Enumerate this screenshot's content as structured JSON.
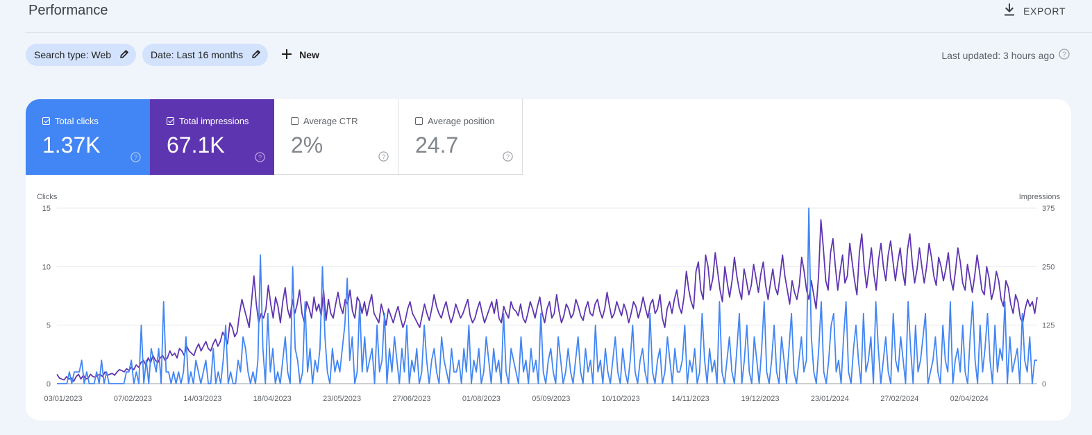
{
  "header": {
    "title": "Performance",
    "export_label": "EXPORT"
  },
  "filters": {
    "search_type": "Search type: Web",
    "date": "Date: Last 16 months",
    "new_label": "New",
    "last_updated": "Last updated: 3 hours ago"
  },
  "metrics": [
    {
      "label": "Total clicks",
      "value": "1.37K",
      "checked": true
    },
    {
      "label": "Total impressions",
      "value": "67.1K",
      "checked": true
    },
    {
      "label": "Average CTR",
      "value": "2%",
      "checked": false
    },
    {
      "label": "Average position",
      "value": "24.7",
      "checked": false
    }
  ],
  "colors": {
    "clicks": "#4285f4",
    "impressions": "#5e35b1"
  },
  "chart_data": {
    "type": "line",
    "left_axis_label": "Clicks",
    "right_axis_label": "Impressions",
    "left_ticks": [
      "15",
      "10",
      "5",
      "0"
    ],
    "right_ticks": [
      "375",
      "250",
      "125",
      "0"
    ],
    "ylim_left": [
      0,
      15
    ],
    "ylim_right": [
      0,
      375
    ],
    "x_ticks": [
      "03/01/2023",
      "07/02/2023",
      "14/03/2023",
      "18/04/2023",
      "23/05/2023",
      "27/06/2023",
      "01/08/2023",
      "05/09/2023",
      "10/10/2023",
      "14/11/2023",
      "19/12/2023",
      "23/01/2024",
      "27/02/2024",
      "02/04/2024"
    ],
    "x_range": [
      "03/01/2023",
      "01/05/2024"
    ],
    "grid": true,
    "series": [
      {
        "name": "Clicks",
        "axis": "left",
        "color": "#4285f4",
        "values": [
          0,
          0,
          0,
          0,
          0,
          1,
          0,
          1,
          1,
          1,
          2,
          0,
          1,
          0,
          0,
          0,
          1,
          0,
          2,
          0,
          1,
          0,
          0,
          0,
          0,
          0,
          0,
          0,
          1,
          1,
          2,
          0,
          1,
          0,
          5,
          0,
          2,
          0,
          3,
          2,
          1,
          3,
          0,
          7,
          1,
          1,
          0,
          1,
          0,
          1,
          0,
          1,
          4,
          0,
          1,
          0,
          2,
          1,
          0,
          1,
          2,
          0,
          0,
          3,
          0,
          1,
          0,
          2,
          5,
          0,
          1,
          0,
          0,
          2,
          1,
          4,
          3,
          1,
          0,
          1,
          0,
          2,
          11,
          3,
          0,
          6,
          1,
          3,
          0,
          1,
          0,
          2,
          4,
          1,
          0,
          10,
          3,
          2,
          0,
          1,
          7,
          1,
          3,
          0,
          2,
          1,
          3,
          10,
          4,
          1,
          0,
          3,
          1,
          2,
          1,
          3,
          5,
          9,
          2,
          4,
          0,
          1,
          7,
          1,
          4,
          1,
          2,
          3,
          0,
          5,
          1,
          2,
          6,
          0,
          3,
          1,
          4,
          2,
          0,
          3,
          1,
          5,
          0,
          2,
          1,
          3,
          0,
          1,
          5,
          2,
          0,
          2,
          3,
          1,
          0,
          4,
          2,
          1,
          0,
          3,
          1,
          1,
          2,
          0,
          3,
          1,
          5,
          0,
          2,
          1,
          3,
          0,
          1,
          4,
          2,
          0,
          3,
          1,
          2,
          0,
          6,
          1,
          0,
          3,
          2,
          1,
          0,
          4,
          1,
          2,
          0,
          3,
          1,
          2,
          0,
          6,
          1,
          0,
          2,
          3,
          1,
          0,
          4,
          2,
          0,
          1,
          3,
          1,
          0,
          2,
          4,
          1,
          0,
          3,
          1,
          2,
          0,
          5,
          1,
          2,
          0,
          3,
          1,
          0,
          2,
          4,
          1,
          0,
          3,
          1,
          0,
          2,
          5,
          1,
          0,
          2,
          3,
          1,
          0,
          6,
          1,
          0,
          2,
          3,
          0,
          1,
          4,
          2,
          0,
          3,
          1,
          1,
          2,
          5,
          0,
          2,
          1,
          3,
          0,
          1,
          6,
          2,
          0,
          3,
          1,
          2,
          0,
          7,
          1,
          0,
          2,
          4,
          1,
          0,
          3,
          6,
          0,
          2,
          5,
          1,
          0,
          4,
          2,
          0,
          3,
          7,
          1,
          0,
          2,
          5,
          1,
          0,
          4,
          2,
          0,
          3,
          6,
          1,
          0,
          2,
          4,
          1,
          2,
          15,
          4,
          1,
          0,
          3,
          7,
          1,
          0,
          2,
          5,
          6,
          1,
          2,
          0,
          4,
          7,
          1,
          0,
          3,
          5,
          2,
          0,
          6,
          1,
          2,
          4,
          0,
          7,
          3,
          0,
          2,
          4,
          1,
          0,
          6,
          2,
          1,
          4,
          2,
          0,
          7,
          3,
          0,
          5,
          1,
          2,
          4,
          6,
          0,
          1,
          2,
          4,
          1,
          0,
          5,
          2,
          1,
          7,
          0,
          2,
          3,
          1,
          5,
          1,
          0,
          4,
          7,
          2,
          0,
          5,
          1,
          3,
          6,
          2,
          0,
          5,
          1,
          3,
          2,
          7,
          0,
          4,
          1,
          2,
          3,
          0,
          6,
          2,
          1,
          4,
          0,
          2,
          2
        ],
        "smooth": false
      },
      {
        "name": "Impressions",
        "axis": "right",
        "color": "#5e35b1",
        "values": [
          20,
          12,
          10,
          8,
          15,
          10,
          12,
          5,
          15,
          20,
          10,
          18,
          10,
          12,
          20,
          15,
          14,
          18,
          20,
          15,
          25,
          18,
          20,
          22,
          18,
          25,
          30,
          28,
          25,
          32,
          28,
          35,
          30,
          40,
          35,
          45,
          50,
          40,
          55,
          45,
          60,
          50,
          45,
          55,
          60,
          50,
          55,
          70,
          60,
          65,
          55,
          75,
          70,
          60,
          80,
          70,
          65,
          60,
          75,
          85,
          70,
          80,
          90,
          75,
          70,
          85,
          95,
          80,
          90,
          110,
          100,
          85,
          130,
          120,
          100,
          110,
          150,
          180,
          160,
          140,
          120,
          175,
          230,
          170,
          130,
          150,
          140,
          160,
          210,
          170,
          140,
          185,
          165,
          130,
          175,
          205,
          160,
          140,
          180,
          150,
          170,
          200,
          150,
          130,
          175,
          160,
          140,
          185,
          155,
          170,
          145,
          200,
          135,
          180,
          150,
          140,
          170,
          195,
          165,
          150,
          180,
          170,
          200,
          155,
          140,
          185,
          175,
          150,
          175,
          145,
          170,
          190,
          150,
          140,
          130,
          170,
          150,
          125,
          160,
          145,
          130,
          150,
          165,
          140,
          120,
          135,
          160,
          175,
          150,
          140,
          130,
          120,
          145,
          170,
          150,
          135,
          160,
          190,
          165,
          150,
          140,
          160,
          175,
          150,
          130,
          145,
          170,
          155,
          140,
          150,
          165,
          180,
          145,
          130,
          140,
          160,
          175,
          150,
          130,
          145,
          160,
          175,
          150,
          180,
          140,
          130,
          165,
          150,
          140,
          175,
          160,
          155,
          145,
          170,
          140,
          130,
          150,
          175,
          160,
          140,
          165,
          185,
          150,
          130,
          160,
          175,
          140,
          150,
          190,
          155,
          130,
          145,
          170,
          160,
          140,
          150,
          180,
          165,
          145,
          135,
          160,
          175,
          150,
          145,
          170,
          180,
          155,
          140,
          160,
          195,
          165,
          140,
          150,
          175,
          160,
          145,
          170,
          155,
          130,
          150,
          175,
          165,
          140,
          160,
          185,
          160,
          140,
          170,
          180,
          150,
          160,
          190,
          140,
          120,
          160,
          175,
          150,
          180,
          200,
          165,
          150,
          185,
          240,
          200,
          175,
          160,
          240,
          260,
          200,
          180,
          275,
          250,
          200,
          225,
          280,
          240,
          200,
          175,
          250,
          215,
          185,
          220,
          270,
          230,
          200,
          180,
          245,
          220,
          190,
          210,
          255,
          225,
          195,
          235,
          260,
          210,
          180,
          215,
          245,
          205,
          190,
          230,
          275,
          230,
          200,
          170,
          220,
          195,
          180,
          210,
          270,
          240,
          200,
          180,
          220,
          190,
          160,
          230,
          350,
          290,
          220,
          200,
          280,
          310,
          250,
          200,
          240,
          275,
          215,
          230,
          300,
          260,
          220,
          190,
          280,
          320,
          250,
          205,
          245,
          290,
          235,
          200,
          265,
          300,
          250,
          220,
          275,
          305,
          260,
          220,
          260,
          290,
          240,
          210,
          285,
          320,
          260,
          215,
          245,
          290,
          250,
          215,
          250,
          300,
          270,
          230,
          210,
          270,
          250,
          220,
          245,
          280,
          225,
          200,
          240,
          290,
          260,
          215,
          200,
          255,
          225,
          195,
          230,
          275,
          240,
          200,
          190,
          250,
          225,
          180,
          200,
          240,
          220,
          180,
          165,
          220,
          205,
          170,
          150,
          190,
          175,
          140,
          130,
          160,
          180,
          165,
          175,
          150,
          185
        ]
      }
    ]
  }
}
